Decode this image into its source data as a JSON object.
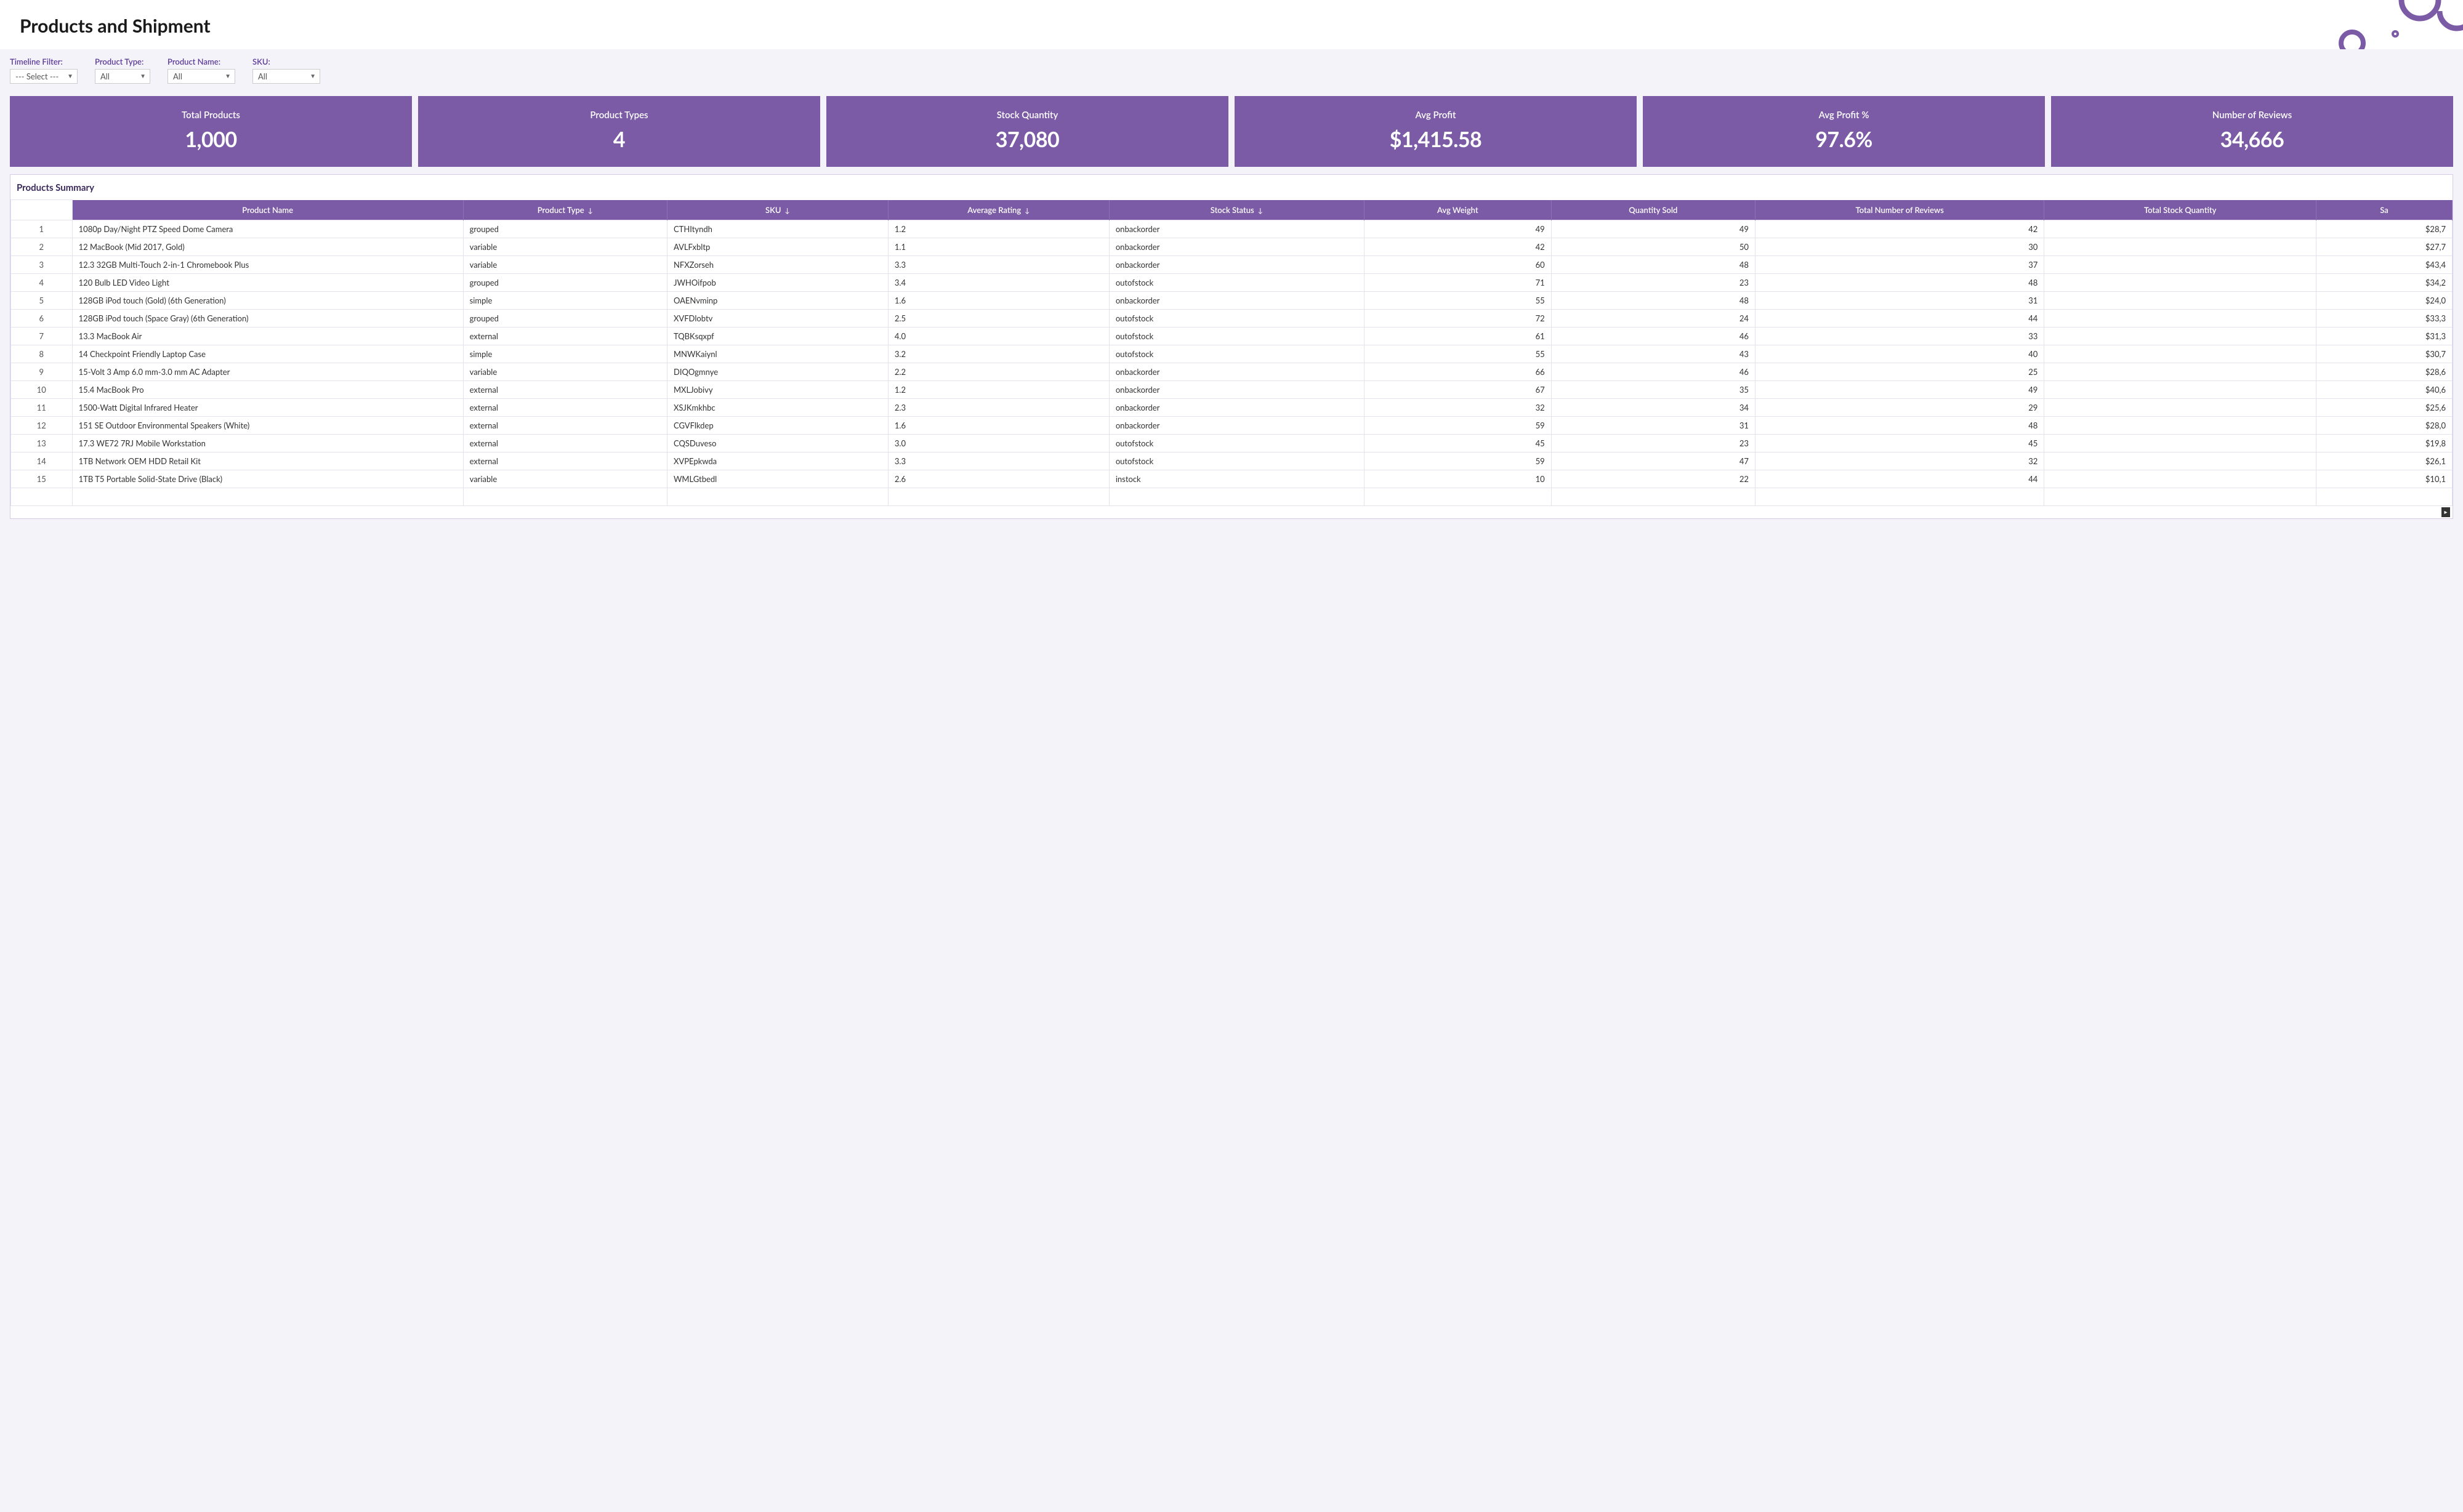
{
  "colors": {
    "brand": "#7b5aa6",
    "brand_border": "#8d70b5",
    "page_bg": "#f5f3fa",
    "card_bg": "#ffffff",
    "grid_border": "#e6e1ef",
    "filter_label": "#5b3a99",
    "title_color": "#3a2a5c"
  },
  "header": {
    "title": "Products and Shipment"
  },
  "filters": {
    "timeline": {
      "label": "Timeline Filter:",
      "value": "--- Select ---"
    },
    "product_type": {
      "label": "Product Type:",
      "value": "All"
    },
    "product_name": {
      "label": "Product Name:",
      "value": "All"
    },
    "sku": {
      "label": "SKU:",
      "value": "All"
    }
  },
  "kpis": [
    {
      "label": "Total Products",
      "value": "1,000"
    },
    {
      "label": "Product Types",
      "value": "4"
    },
    {
      "label": "Stock Quantity",
      "value": "37,080"
    },
    {
      "label": "Avg Profit",
      "value": "$1,415.58"
    },
    {
      "label": "Avg Profit %",
      "value": "97.6%"
    },
    {
      "label": "Number of Reviews",
      "value": "34,666"
    }
  ],
  "table": {
    "title": "Products Summary",
    "columns": [
      {
        "key": "product_name",
        "label": "Product Name",
        "sortable": false,
        "align": "left",
        "class": "col-name"
      },
      {
        "key": "product_type",
        "label": "Product Type",
        "sortable": true,
        "align": "left",
        "class": "col-type"
      },
      {
        "key": "sku",
        "label": "SKU",
        "sortable": true,
        "align": "left",
        "class": "col-sku"
      },
      {
        "key": "avg_rating",
        "label": "Average Rating",
        "sortable": true,
        "align": "left",
        "class": "col-rating"
      },
      {
        "key": "stock_status",
        "label": "Stock Status",
        "sortable": true,
        "align": "left",
        "class": "col-stockstatus"
      },
      {
        "key": "avg_weight",
        "label": "Avg Weight",
        "sortable": false,
        "align": "right",
        "class": "col-weight num"
      },
      {
        "key": "qty_sold",
        "label": "Quantity Sold",
        "sortable": false,
        "align": "right",
        "class": "col-qtysold num"
      },
      {
        "key": "total_reviews",
        "label": "Total Number of Reviews",
        "sortable": false,
        "align": "right",
        "class": "col-reviews num"
      },
      {
        "key": "total_stock_qty",
        "label": "Total Stock Quantity",
        "sortable": false,
        "align": "right",
        "class": "col-stockqty num"
      },
      {
        "key": "sales_partial",
        "label": "Sa",
        "sortable": false,
        "align": "right",
        "class": "col-sales num"
      }
    ],
    "rows": [
      {
        "n": 1,
        "product_name": "1080p Day/Night PTZ Speed Dome Camera",
        "product_type": "grouped",
        "sku": "CTHItyndh",
        "avg_rating": "1.2",
        "stock_status": "onbackorder",
        "avg_weight": "49",
        "qty_sold": "49",
        "total_reviews": "42",
        "total_stock_qty": "",
        "sales_partial": "$28,7"
      },
      {
        "n": 2,
        "product_name": "12 MacBook (Mid 2017, Gold)",
        "product_type": "variable",
        "sku": "AVLFxbltp",
        "avg_rating": "1.1",
        "stock_status": "onbackorder",
        "avg_weight": "42",
        "qty_sold": "50",
        "total_reviews": "30",
        "total_stock_qty": "",
        "sales_partial": "$27,7"
      },
      {
        "n": 3,
        "product_name": "12.3 32GB Multi-Touch 2-in-1 Chromebook Plus",
        "product_type": "variable",
        "sku": "NFXZorseh",
        "avg_rating": "3.3",
        "stock_status": "onbackorder",
        "avg_weight": "60",
        "qty_sold": "48",
        "total_reviews": "37",
        "total_stock_qty": "",
        "sales_partial": "$43,4"
      },
      {
        "n": 4,
        "product_name": "120 Bulb LED Video Light",
        "product_type": "grouped",
        "sku": "JWHOifpob",
        "avg_rating": "3.4",
        "stock_status": "outofstock",
        "avg_weight": "71",
        "qty_sold": "23",
        "total_reviews": "48",
        "total_stock_qty": "",
        "sales_partial": "$34,2"
      },
      {
        "n": 5,
        "product_name": "128GB iPod touch (Gold) (6th Generation)",
        "product_type": "simple",
        "sku": "OAENvminp",
        "avg_rating": "1.6",
        "stock_status": "onbackorder",
        "avg_weight": "55",
        "qty_sold": "48",
        "total_reviews": "31",
        "total_stock_qty": "",
        "sales_partial": "$24,0"
      },
      {
        "n": 6,
        "product_name": "128GB iPod touch (Space Gray) (6th Generation)",
        "product_type": "grouped",
        "sku": "XVFDlobtv",
        "avg_rating": "2.5",
        "stock_status": "outofstock",
        "avg_weight": "72",
        "qty_sold": "24",
        "total_reviews": "44",
        "total_stock_qty": "",
        "sales_partial": "$33,3"
      },
      {
        "n": 7,
        "product_name": "13.3 MacBook Air",
        "product_type": "external",
        "sku": "TQBKsqxpf",
        "avg_rating": "4.0",
        "stock_status": "outofstock",
        "avg_weight": "61",
        "qty_sold": "46",
        "total_reviews": "33",
        "total_stock_qty": "",
        "sales_partial": "$31,3"
      },
      {
        "n": 8,
        "product_name": "14 Checkpoint Friendly Laptop Case",
        "product_type": "simple",
        "sku": "MNWKaiynl",
        "avg_rating": "3.2",
        "stock_status": "outofstock",
        "avg_weight": "55",
        "qty_sold": "43",
        "total_reviews": "40",
        "total_stock_qty": "",
        "sales_partial": "$30,7"
      },
      {
        "n": 9,
        "product_name": "15-Volt 3 Amp 6.0 mm-3.0 mm AC Adapter",
        "product_type": "variable",
        "sku": "DIQOgmnye",
        "avg_rating": "2.2",
        "stock_status": "onbackorder",
        "avg_weight": "66",
        "qty_sold": "46",
        "total_reviews": "25",
        "total_stock_qty": "",
        "sales_partial": "$28,6"
      },
      {
        "n": 10,
        "product_name": "15.4 MacBook Pro",
        "product_type": "external",
        "sku": "MXLJobivy",
        "avg_rating": "1.2",
        "stock_status": "onbackorder",
        "avg_weight": "67",
        "qty_sold": "35",
        "total_reviews": "49",
        "total_stock_qty": "",
        "sales_partial": "$40,6"
      },
      {
        "n": 11,
        "product_name": "1500-Watt Digital Infrared Heater",
        "product_type": "external",
        "sku": "XSJKmkhbc",
        "avg_rating": "2.3",
        "stock_status": "onbackorder",
        "avg_weight": "32",
        "qty_sold": "34",
        "total_reviews": "29",
        "total_stock_qty": "",
        "sales_partial": "$25,6"
      },
      {
        "n": 12,
        "product_name": "151 SE Outdoor Environmental Speakers (White)",
        "product_type": "external",
        "sku": "CGVFlkdep",
        "avg_rating": "1.6",
        "stock_status": "onbackorder",
        "avg_weight": "59",
        "qty_sold": "31",
        "total_reviews": "48",
        "total_stock_qty": "",
        "sales_partial": "$28,0"
      },
      {
        "n": 13,
        "product_name": "17.3 WE72 7RJ Mobile Workstation",
        "product_type": "external",
        "sku": "CQSDuveso",
        "avg_rating": "3.0",
        "stock_status": "outofstock",
        "avg_weight": "45",
        "qty_sold": "23",
        "total_reviews": "45",
        "total_stock_qty": "",
        "sales_partial": "$19,8"
      },
      {
        "n": 14,
        "product_name": "1TB Network OEM HDD Retail Kit",
        "product_type": "external",
        "sku": "XVPEpkwda",
        "avg_rating": "3.3",
        "stock_status": "outofstock",
        "avg_weight": "59",
        "qty_sold": "47",
        "total_reviews": "32",
        "total_stock_qty": "",
        "sales_partial": "$26,1"
      },
      {
        "n": 15,
        "product_name": "1TB T5 Portable Solid-State Drive (Black)",
        "product_type": "variable",
        "sku": "WMLGtbedl",
        "avg_rating": "2.6",
        "stock_status": "instock",
        "avg_weight": "10",
        "qty_sold": "22",
        "total_reviews": "44",
        "total_stock_qty": "",
        "sales_partial": "$10,1"
      }
    ]
  }
}
